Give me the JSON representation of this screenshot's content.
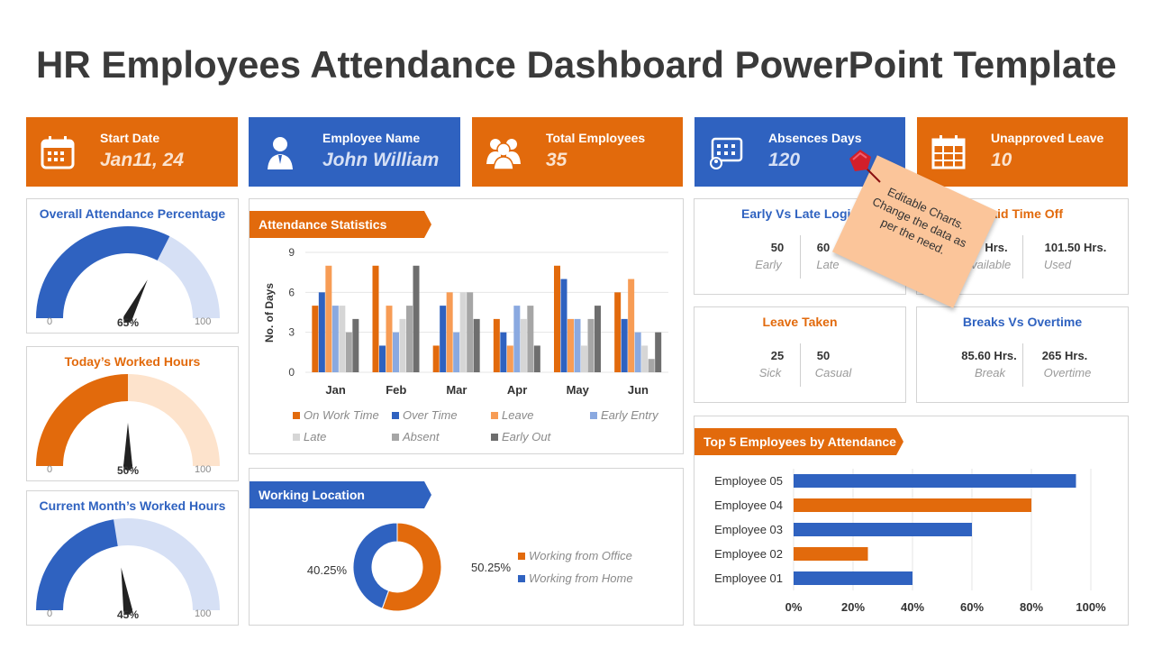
{
  "title": "HR Employees Attendance Dashboard PowerPoint Template",
  "kpis": [
    {
      "label": "Start Date",
      "value": "Jan11, 24",
      "icon": "calendar-icon",
      "color": "#e26a0c"
    },
    {
      "label": "Employee Name",
      "value": "John William",
      "icon": "employee-icon",
      "color": "#2f62c0"
    },
    {
      "label": "Total Employees",
      "value": "35",
      "icon": "team-icon",
      "color": "#e26a0c"
    },
    {
      "label": "Absences Days",
      "value": "120",
      "icon": "schedule-icon",
      "color": "#2f62c0"
    },
    {
      "label": "Unapproved Leave",
      "value": "10",
      "icon": "calendar-grid-icon",
      "color": "#e26a0c"
    }
  ],
  "gauges": [
    {
      "title": "Overall Attendance Percentage",
      "min": "0",
      "max": "100",
      "pct_label": "65%",
      "value": 65,
      "color": "#2f62c0",
      "track": "#d6e0f5"
    },
    {
      "title": "Today’s Worked Hours",
      "min": "0",
      "max": "100",
      "pct_label": "50%",
      "value": 50,
      "color": "#e26a0c",
      "track": "#fde3cc"
    },
    {
      "title": "Current Month’s Worked Hours",
      "min": "0",
      "max": "100",
      "pct_label": "45%",
      "value": 45,
      "color": "#2f62c0",
      "track": "#d6e0f5"
    }
  ],
  "attendance": {
    "ribbon": "Attendance Statistics",
    "ylabel": "No. of Days",
    "yticks": [
      "0",
      "3",
      "6",
      "9"
    ]
  },
  "chart_data": [
    {
      "type": "bar",
      "ylabel": "No. of Days",
      "ylim": [
        0,
        9
      ],
      "categories": [
        "Jan",
        "Feb",
        "Mar",
        "Apr",
        "May",
        "Jun"
      ],
      "series": [
        {
          "name": "On Work Time",
          "color": "#e26a0c",
          "values": [
            5,
            8,
            2,
            4,
            8,
            6
          ]
        },
        {
          "name": "Over Time",
          "color": "#2f62c0",
          "values": [
            6,
            2,
            5,
            3,
            7,
            4
          ]
        },
        {
          "name": "Leave",
          "color": "#f79c55",
          "values": [
            8,
            5,
            6,
            2,
            4,
            7
          ]
        },
        {
          "name": "Early Entry",
          "color": "#8aa9e0",
          "values": [
            5,
            3,
            3,
            5,
            4,
            3
          ]
        },
        {
          "name": "Late",
          "color": "#d6d6d6",
          "values": [
            5,
            4,
            6,
            4,
            2,
            2
          ]
        },
        {
          "name": "Absent",
          "color": "#a6a6a6",
          "values": [
            3,
            5,
            6,
            5,
            4,
            1
          ]
        },
        {
          "name": "Early Out",
          "color": "#6e6e6e",
          "values": [
            4,
            8,
            4,
            2,
            5,
            3
          ]
        }
      ]
    },
    {
      "type": "pie",
      "categories": [
        "Working from Office",
        "Working from Home"
      ],
      "values": [
        50.25,
        40.25
      ],
      "labels": [
        "50.25%",
        "40.25%"
      ],
      "colors": [
        "#e26a0c",
        "#2f62c0"
      ]
    },
    {
      "type": "bar",
      "orientation": "horizontal",
      "title": "Top 5 Employees by Attendance",
      "categories": [
        "Employee 05",
        "Employee 04",
        "Employee 03",
        "Employee 02",
        "Employee 01"
      ],
      "values": [
        95,
        80,
        60,
        25,
        40
      ],
      "colors": [
        "#2f62c0",
        "#e26a0c",
        "#2f62c0",
        "#e26a0c",
        "#2f62c0"
      ],
      "xlim": [
        0,
        100
      ],
      "xticks": [
        "0%",
        "20%",
        "40%",
        "60%",
        "80%",
        "100%"
      ]
    }
  ],
  "location": {
    "ribbon": "Working Location"
  },
  "stats": [
    {
      "title": "Early Vs Late Login",
      "a_val": "50",
      "a_lab": "Early",
      "b_val": "60",
      "b_lab": "Late",
      "color": "#2f62c0"
    },
    {
      "title": "Paid Time Off",
      "a_val": "Hrs.",
      "a_lab": "Available",
      "b_val": "101.50 Hrs.",
      "b_lab": "Used",
      "color": "#e26a0c"
    },
    {
      "title": "Leave Taken",
      "a_val": "25",
      "a_lab": "Sick",
      "b_val": "50",
      "b_lab": "Casual",
      "color": "#e26a0c"
    },
    {
      "title": "Breaks Vs Overtime",
      "a_val": "85.60 Hrs.",
      "a_lab": "Break",
      "b_val": "265 Hrs.",
      "b_lab": "Overtime",
      "color": "#2f62c0"
    }
  ],
  "top5": {
    "ribbon": "Top 5 Employees by Attendance"
  },
  "sticky_note": "Editable Charts. Change the data as per the need."
}
